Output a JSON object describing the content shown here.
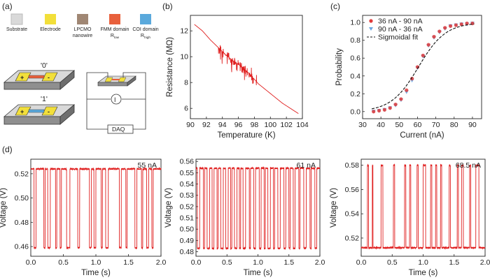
{
  "panel_labels": {
    "a": "(a)",
    "b": "(b)",
    "c": "(c)",
    "d": "(d)"
  },
  "schematic": {
    "legend": [
      {
        "label": "Substrate",
        "color": "#d9d9d9"
      },
      {
        "label": "Electrode",
        "color": "#f2df3a"
      },
      {
        "label": "LPCMO",
        "label2": "nanowire",
        "color": "#a08774"
      },
      {
        "label": "FMM domain",
        "label2": "R",
        "sub": "low",
        "color": "#e8603c"
      },
      {
        "label": "COI domain",
        "label2": "R",
        "sub": "high",
        "color": "#5aa9dc"
      }
    ],
    "state0": "'0'",
    "state1": "'1'",
    "daq": "DAQ",
    "source_symbol": "I"
  },
  "chart_data": [
    {
      "id": "b",
      "type": "line",
      "xlabel": "Temperature (K)",
      "ylabel": "Resistance (MΩ)",
      "xlim": [
        90,
        104
      ],
      "ylim": [
        5.2,
        13.2
      ],
      "xticks": [
        90,
        92,
        94,
        96,
        98,
        100,
        102,
        104
      ],
      "yticks": [
        6,
        8,
        10,
        12
      ],
      "color": "#e02020",
      "series": [
        {
          "x": [
            90.5,
            91.5,
            92.5,
            93.5,
            94.5,
            95.5,
            96.5,
            97.5,
            98.5,
            99.5,
            100.5,
            101.5,
            102.5,
            103.5
          ],
          "y": [
            12.5,
            12.0,
            11.3,
            10.7,
            10.1,
            9.6,
            9.2,
            8.6,
            7.9,
            7.4,
            6.9,
            6.4,
            6.0,
            5.6
          ]
        }
      ],
      "noise_range_x": [
        93.5,
        98.3
      ],
      "noise_amplitude": 1.2
    },
    {
      "id": "c",
      "type": "scatter",
      "xlabel": "Current (nA)",
      "ylabel": "Probability",
      "xlim": [
        30,
        95
      ],
      "ylim": [
        -0.08,
        1.08
      ],
      "xticks": [
        30,
        40,
        50,
        60,
        70,
        80,
        90
      ],
      "yticks": [
        0.0,
        0.2,
        0.4,
        0.6,
        0.8,
        1.0
      ],
      "series": [
        {
          "name": "36 nA - 90 nA",
          "color": "#e03a3a",
          "marker": "circle",
          "x": [
            36,
            39,
            42,
            45,
            48,
            51,
            54,
            57,
            60,
            63,
            66,
            69,
            72,
            75,
            78,
            81,
            84,
            87,
            90
          ],
          "y": [
            0.0,
            0.01,
            0.02,
            0.04,
            0.08,
            0.14,
            0.24,
            0.37,
            0.5,
            0.63,
            0.75,
            0.84,
            0.9,
            0.94,
            0.96,
            0.97,
            0.98,
            0.99,
            0.99
          ]
        },
        {
          "name": "90 nA - 36 nA",
          "color": "#6aa6e0",
          "marker": "triangle-down",
          "x": [
            36,
            39,
            42,
            45,
            48,
            51,
            54,
            57,
            60,
            63,
            66,
            69,
            72,
            75,
            78,
            81,
            84,
            87,
            90
          ],
          "y": [
            0.0,
            0.01,
            0.02,
            0.04,
            0.07,
            0.13,
            0.22,
            0.35,
            0.49,
            0.62,
            0.74,
            0.83,
            0.89,
            0.93,
            0.96,
            0.97,
            0.98,
            0.98,
            0.99
          ]
        },
        {
          "name": "Sigmoidal fit",
          "color": "#111111",
          "style": "dashed",
          "x0": 60.5,
          "k": 0.135
        }
      ],
      "legend_position": "top-left"
    },
    {
      "id": "d1",
      "type": "line",
      "annotation": "55 nA",
      "xlabel": "Time (s)",
      "ylabel": "Voltage (V)",
      "xlim": [
        0,
        2.0
      ],
      "ylim": [
        0.452,
        0.532
      ],
      "xticks": [
        0.0,
        0.5,
        1.0,
        1.5,
        2.0
      ],
      "yticks": [
        0.46,
        0.48,
        0.5,
        0.52
      ],
      "color": "#e02020",
      "high": 0.524,
      "low": 0.459,
      "dips": [
        [
          0.05,
          0.08
        ],
        [
          0.2,
          0.22
        ],
        [
          0.26,
          0.3
        ],
        [
          0.38,
          0.4
        ],
        [
          0.45,
          0.47
        ],
        [
          0.55,
          0.6
        ],
        [
          0.72,
          0.75
        ],
        [
          0.9,
          0.93
        ],
        [
          0.97,
          1.0
        ],
        [
          1.08,
          1.1
        ],
        [
          1.15,
          1.19
        ],
        [
          1.36,
          1.39
        ],
        [
          1.46,
          1.48
        ],
        [
          1.6,
          1.63
        ],
        [
          1.7,
          1.72
        ],
        [
          1.78,
          1.81
        ],
        [
          1.86,
          1.88
        ]
      ]
    },
    {
      "id": "d2",
      "type": "line",
      "annotation": "61 nA",
      "xlabel": "Time (s)",
      "ylabel": "Voltage (V)",
      "xlim": [
        0,
        2.0
      ],
      "ylim": [
        0.476,
        0.562
      ],
      "xticks": [
        0.0,
        0.5,
        1.0,
        1.5,
        2.0
      ],
      "yticks": [
        0.48,
        0.49,
        0.5,
        0.51,
        0.52,
        0.53,
        0.54,
        0.55,
        0.56
      ],
      "color": "#e02020",
      "high": 0.554,
      "low": 0.483,
      "dips": [
        [
          0.02,
          0.06
        ],
        [
          0.12,
          0.14
        ],
        [
          0.18,
          0.22
        ],
        [
          0.26,
          0.29
        ],
        [
          0.34,
          0.36
        ],
        [
          0.4,
          0.44
        ],
        [
          0.48,
          0.52
        ],
        [
          0.56,
          0.58
        ],
        [
          0.62,
          0.66
        ],
        [
          0.7,
          0.72
        ],
        [
          0.76,
          0.8
        ],
        [
          0.86,
          0.88
        ],
        [
          0.93,
          0.96
        ],
        [
          1.02,
          1.05
        ],
        [
          1.1,
          1.12
        ],
        [
          1.16,
          1.2
        ],
        [
          1.25,
          1.27
        ],
        [
          1.32,
          1.36
        ],
        [
          1.42,
          1.45
        ],
        [
          1.5,
          1.52
        ],
        [
          1.57,
          1.6
        ],
        [
          1.66,
          1.68
        ],
        [
          1.74,
          1.78
        ],
        [
          1.84,
          1.86
        ],
        [
          1.92,
          1.95
        ]
      ]
    },
    {
      "id": "d3",
      "type": "line",
      "annotation": "68.5 nA",
      "xlabel": "Time (s)",
      "ylabel": "Voltage (V)",
      "xlim": [
        0,
        2.0
      ],
      "ylim": [
        0.505,
        0.585
      ],
      "xticks": [
        0.0,
        0.5,
        1.0,
        1.5,
        2.0
      ],
      "yticks": [
        0.52,
        0.54,
        0.56,
        0.58
      ],
      "color": "#e02020",
      "high": 0.58,
      "low": 0.512,
      "spikes": [
        [
          0.1,
          0.12
        ],
        [
          0.18,
          0.19
        ],
        [
          0.32,
          0.35
        ],
        [
          0.52,
          0.54
        ],
        [
          0.7,
          0.72
        ],
        [
          0.78,
          0.8
        ],
        [
          0.9,
          0.92
        ],
        [
          1.0,
          1.04
        ],
        [
          1.12,
          1.14
        ],
        [
          1.2,
          1.22
        ],
        [
          1.28,
          1.3
        ],
        [
          1.42,
          1.44
        ],
        [
          1.55,
          1.57
        ],
        [
          1.62,
          1.65
        ],
        [
          1.75,
          1.77
        ],
        [
          1.85,
          1.9
        ]
      ]
    }
  ]
}
